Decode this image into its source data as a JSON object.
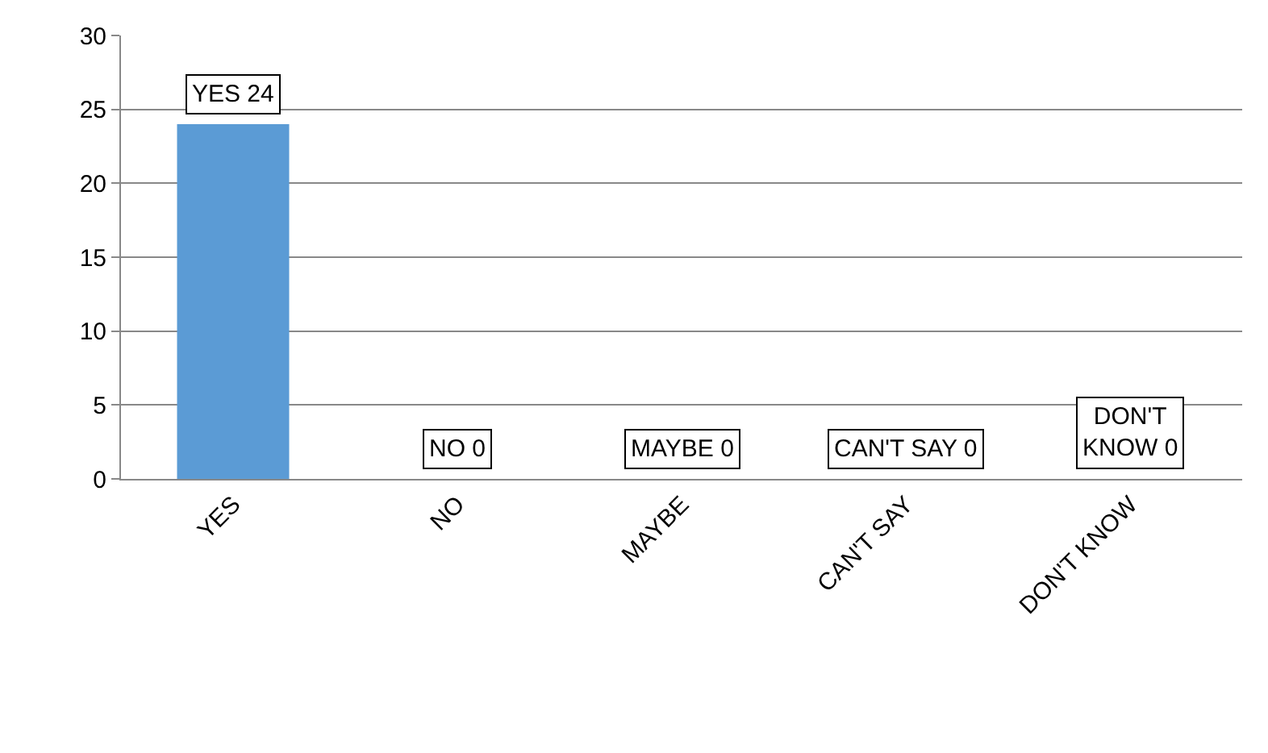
{
  "chart_data": {
    "type": "bar",
    "categories": [
      "YES",
      "NO",
      "MAYBE",
      "CAN'T SAY",
      "DON'T KNOW"
    ],
    "values": [
      24,
      0,
      0,
      0,
      0
    ],
    "color": "#5b9bd5",
    "value_labels": [
      "YES 24",
      "NO 0",
      "MAYBE 0",
      "CAN'T SAY 0",
      "DON'T KNOW 0"
    ],
    "ylim": [
      0,
      30
    ],
    "yticks": [
      0,
      5,
      10,
      15,
      20,
      25,
      30
    ],
    "grid": "y"
  }
}
